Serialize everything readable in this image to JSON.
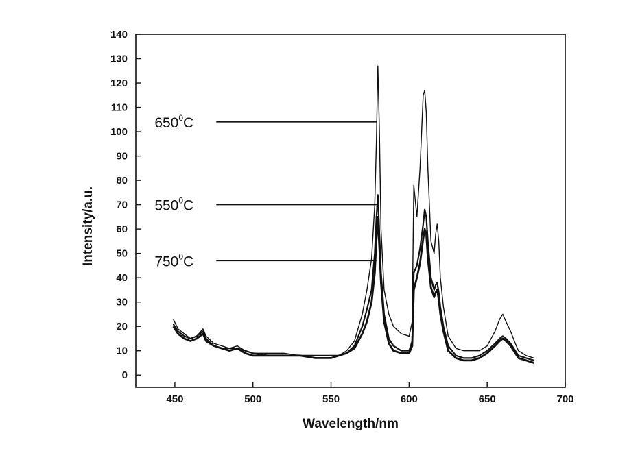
{
  "chart_data": {
    "type": "line",
    "xlabel": "Wavelength/nm",
    "ylabel": "Intensity/a.u.",
    "xlim": [
      425,
      700
    ],
    "ylim": [
      -5,
      140
    ],
    "x_ticks": [
      450,
      500,
      550,
      600,
      650,
      700
    ],
    "y_ticks": [
      0,
      10,
      20,
      30,
      40,
      50,
      60,
      70,
      80,
      90,
      100,
      110,
      120,
      130,
      140
    ],
    "grid": false,
    "legend": "none",
    "line_color": "#111111",
    "annotations": [
      {
        "base": "650",
        "sup": "0",
        "unit": "C",
        "series": "650°C",
        "arrow_y": 104
      },
      {
        "base": "550",
        "sup": "0",
        "unit": "C",
        "series": "550°C",
        "arrow_y": 70
      },
      {
        "base": "750",
        "sup": "0",
        "unit": "C",
        "series": "750°C",
        "arrow_y": 47
      }
    ],
    "series": [
      {
        "name": "650°C",
        "x": [
          449,
          452,
          456,
          460,
          464,
          468,
          470,
          475,
          480,
          485,
          490,
          495,
          500,
          510,
          520,
          530,
          540,
          550,
          555,
          560,
          565,
          570,
          573,
          576,
          578,
          579,
          580,
          581,
          582,
          584,
          587,
          590,
          595,
          600,
          602,
          603,
          605,
          607,
          609,
          610,
          611,
          612,
          614,
          616,
          617,
          618,
          619,
          620,
          622,
          625,
          630,
          635,
          640,
          645,
          650,
          655,
          658,
          660,
          662,
          665,
          668,
          670,
          675,
          680
        ],
        "y": [
          23,
          19,
          17,
          15,
          16,
          19,
          16,
          13,
          12,
          11,
          12,
          10,
          9,
          9,
          9,
          8,
          8,
          8,
          8,
          10,
          14,
          25,
          35,
          48,
          70,
          95,
          127,
          100,
          60,
          35,
          25,
          20,
          17,
          16,
          22,
          78,
          65,
          85,
          115,
          117,
          108,
          85,
          55,
          50,
          58,
          62,
          55,
          40,
          28,
          16,
          11,
          10,
          10,
          10,
          12,
          18,
          23,
          25,
          22,
          18,
          13,
          10,
          8,
          7
        ]
      },
      {
        "name": "550°C",
        "x": [
          449,
          452,
          456,
          460,
          464,
          468,
          470,
          475,
          480,
          485,
          490,
          495,
          500,
          510,
          520,
          530,
          540,
          550,
          555,
          560,
          565,
          570,
          573,
          576,
          578,
          579,
          580,
          581,
          582,
          584,
          587,
          590,
          595,
          600,
          602,
          603,
          605,
          607,
          609,
          610,
          611,
          612,
          614,
          616,
          617,
          618,
          619,
          620,
          622,
          625,
          630,
          635,
          640,
          645,
          650,
          655,
          658,
          660,
          662,
          665,
          668,
          670,
          675,
          680
        ],
        "y": [
          21,
          18,
          16,
          15,
          16,
          18,
          15,
          12,
          11,
          11,
          11,
          10,
          9,
          8,
          8,
          8,
          8,
          8,
          8,
          9,
          12,
          20,
          27,
          35,
          50,
          64,
          74,
          58,
          42,
          25,
          15,
          12,
          10,
          10,
          14,
          42,
          45,
          52,
          62,
          68,
          65,
          55,
          40,
          35,
          37,
          38,
          34,
          28,
          20,
          12,
          8,
          7,
          7,
          8,
          10,
          13,
          15,
          16,
          15,
          13,
          10,
          8,
          7,
          6
        ]
      },
      {
        "name": "750°C",
        "x": [
          449,
          452,
          456,
          460,
          464,
          468,
          470,
          475,
          480,
          485,
          490,
          495,
          500,
          510,
          520,
          530,
          540,
          550,
          555,
          560,
          565,
          570,
          573,
          576,
          578,
          579,
          580,
          581,
          582,
          584,
          587,
          590,
          595,
          600,
          602,
          603,
          605,
          607,
          609,
          610,
          611,
          612,
          614,
          616,
          617,
          618,
          619,
          620,
          622,
          625,
          630,
          635,
          640,
          645,
          650,
          655,
          658,
          660,
          662,
          665,
          668,
          670,
          675,
          680
        ],
        "y": [
          20,
          17,
          15,
          14,
          15,
          17,
          14,
          12,
          11,
          10,
          11,
          9,
          8,
          8,
          8,
          8,
          7,
          7,
          8,
          9,
          11,
          17,
          22,
          30,
          42,
          55,
          65,
          52,
          38,
          22,
          13,
          10,
          9,
          9,
          12,
          35,
          40,
          46,
          56,
          60,
          58,
          48,
          36,
          32,
          34,
          35,
          31,
          25,
          18,
          10,
          7,
          6,
          6,
          7,
          9,
          12,
          14,
          15,
          14,
          12,
          9,
          7,
          6,
          5
        ]
      }
    ]
  }
}
